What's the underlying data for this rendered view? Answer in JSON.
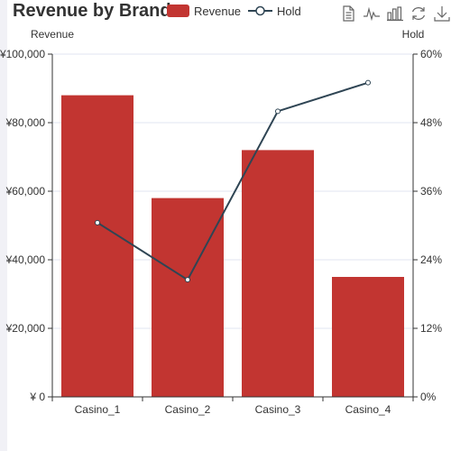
{
  "title": "Revenue by Brand",
  "legend": {
    "items": [
      {
        "label": "Revenue",
        "kind": "bar",
        "color": "#c23531"
      },
      {
        "label": "Hold",
        "kind": "line",
        "color": "#2f4554"
      }
    ]
  },
  "toolbox": {
    "icons": [
      "data-view-icon",
      "line-chart-icon",
      "bar-chart-icon",
      "restore-icon",
      "save-image-icon"
    ]
  },
  "chart_data": {
    "type": "bar",
    "title": "Revenue by Brand",
    "categories": [
      "Casino_1",
      "Casino_2",
      "Casino_3",
      "Casino_4"
    ],
    "series": [
      {
        "name": "Revenue",
        "type": "bar",
        "axis": "left",
        "color": "#c23531",
        "values": [
          88000,
          58000,
          72000,
          35000
        ]
      },
      {
        "name": "Hold",
        "type": "line",
        "axis": "right",
        "color": "#2f4554",
        "values": [
          30.5,
          20.5,
          50,
          55
        ]
      }
    ],
    "ylabel_left": "Revenue",
    "ylabel_right": "Hold",
    "ylim_left": [
      0,
      100000
    ],
    "ylim_right": [
      0,
      60
    ],
    "y_ticks_left": [
      "¥ 0",
      "¥20,000",
      "¥40,000",
      "¥60,000",
      "¥80,000",
      "¥100,000"
    ],
    "y_ticks_right": [
      "0%",
      "12%",
      "24%",
      "36%",
      "48%",
      "60%"
    ],
    "grid": true,
    "legend_position": "top"
  }
}
